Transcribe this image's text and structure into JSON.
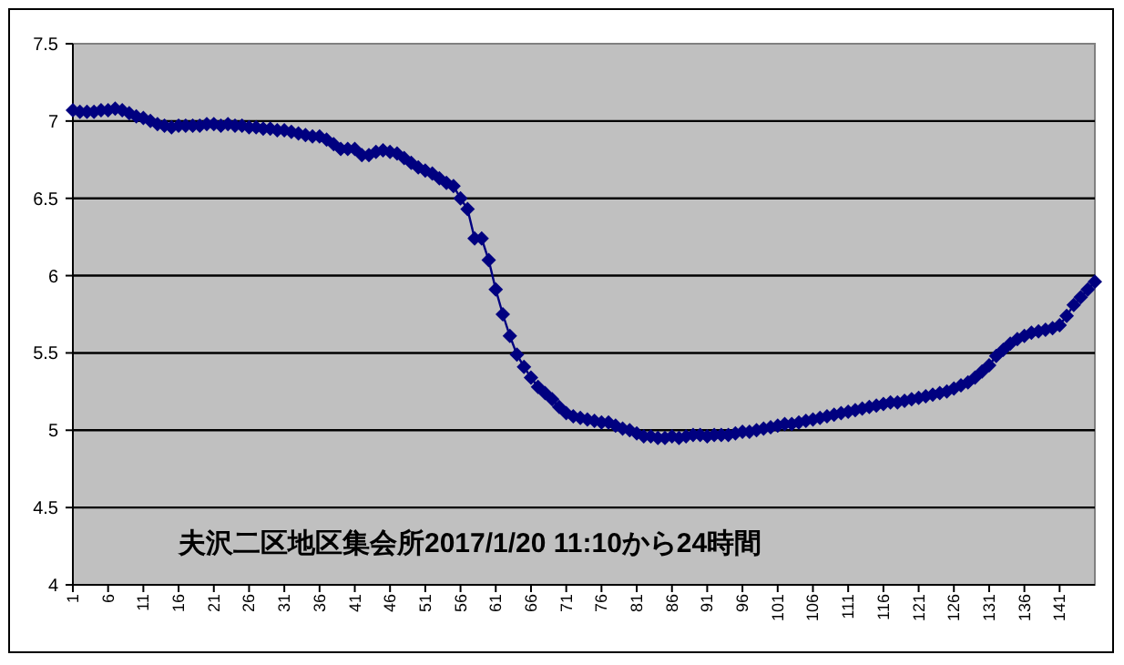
{
  "chart_data": {
    "type": "line",
    "categories": [
      "1",
      null,
      null,
      null,
      null,
      "6",
      null,
      null,
      null,
      null,
      "11",
      null,
      null,
      null,
      null,
      "16",
      null,
      null,
      null,
      null,
      "21",
      null,
      null,
      null,
      null,
      "26",
      null,
      null,
      null,
      null,
      "31",
      null,
      null,
      null,
      null,
      "36",
      null,
      null,
      null,
      null,
      "41",
      null,
      null,
      null,
      null,
      "46",
      null,
      null,
      null,
      null,
      "51",
      null,
      null,
      null,
      null,
      "56",
      null,
      null,
      null,
      null,
      "61",
      null,
      null,
      null,
      null,
      "66",
      null,
      null,
      null,
      null,
      "71",
      null,
      null,
      null,
      null,
      "76",
      null,
      null,
      null,
      null,
      "81",
      null,
      null,
      null,
      null,
      "86",
      null,
      null,
      null,
      null,
      "91",
      null,
      null,
      null,
      null,
      "96",
      null,
      null,
      null,
      null,
      "101",
      null,
      null,
      null,
      null,
      "106",
      null,
      null,
      null,
      null,
      "111",
      null,
      null,
      null,
      null,
      "116",
      null,
      null,
      null,
      null,
      "121",
      null,
      null,
      null,
      null,
      "126",
      null,
      null,
      null,
      null,
      "131",
      null,
      null,
      null,
      null,
      "136",
      null,
      null,
      null,
      null,
      "141",
      null,
      null,
      null,
      null,
      null
    ],
    "series": [
      {
        "color": "#000080",
        "values": [
          7.07,
          7.06,
          7.06,
          7.06,
          7.07,
          7.07,
          7.08,
          7.07,
          7.05,
          7.03,
          7.02,
          7.0,
          6.98,
          6.97,
          6.96,
          6.97,
          6.97,
          6.97,
          6.97,
          6.98,
          6.98,
          6.97,
          6.98,
          6.97,
          6.97,
          6.96,
          6.96,
          6.95,
          6.95,
          6.94,
          6.94,
          6.93,
          6.92,
          6.91,
          6.9,
          6.9,
          6.88,
          6.85,
          6.82,
          6.82,
          6.82,
          6.78,
          6.78,
          6.8,
          6.81,
          6.8,
          6.79,
          6.76,
          6.73,
          6.7,
          6.68,
          6.66,
          6.63,
          6.6,
          6.58,
          6.5,
          6.43,
          6.24,
          6.24,
          6.1,
          5.91,
          5.75,
          5.61,
          5.49,
          5.41,
          5.34,
          5.28,
          5.24,
          5.2,
          5.15,
          5.11,
          5.09,
          5.08,
          5.07,
          5.06,
          5.05,
          5.05,
          5.03,
          5.01,
          5.0,
          4.98,
          4.96,
          4.96,
          4.95,
          4.95,
          4.96,
          4.95,
          4.96,
          4.97,
          4.97,
          4.96,
          4.97,
          4.97,
          4.97,
          4.98,
          4.99,
          4.99,
          5.0,
          5.01,
          5.02,
          5.03,
          5.04,
          5.04,
          5.05,
          5.06,
          5.07,
          5.08,
          5.09,
          5.1,
          5.11,
          5.12,
          5.13,
          5.14,
          5.15,
          5.16,
          5.17,
          5.18,
          5.18,
          5.19,
          5.2,
          5.21,
          5.22,
          5.23,
          5.24,
          5.25,
          5.27,
          5.29,
          5.31,
          5.34,
          5.38,
          5.42,
          5.48,
          5.52,
          5.56,
          5.59,
          5.61,
          5.63,
          5.64,
          5.65,
          5.66,
          5.68,
          5.74,
          5.81,
          5.86,
          5.91,
          5.96
        ]
      }
    ],
    "ylim": [
      4,
      7.5
    ],
    "yticks": [
      4,
      4.5,
      5,
      5.5,
      6,
      6.5,
      7,
      7.5
    ],
    "grid": "y",
    "marker": "diamond",
    "line_style": "solid",
    "annotations": [
      "夫沢二区地区集会所2017/1/20 11:10から24時間"
    ]
  }
}
